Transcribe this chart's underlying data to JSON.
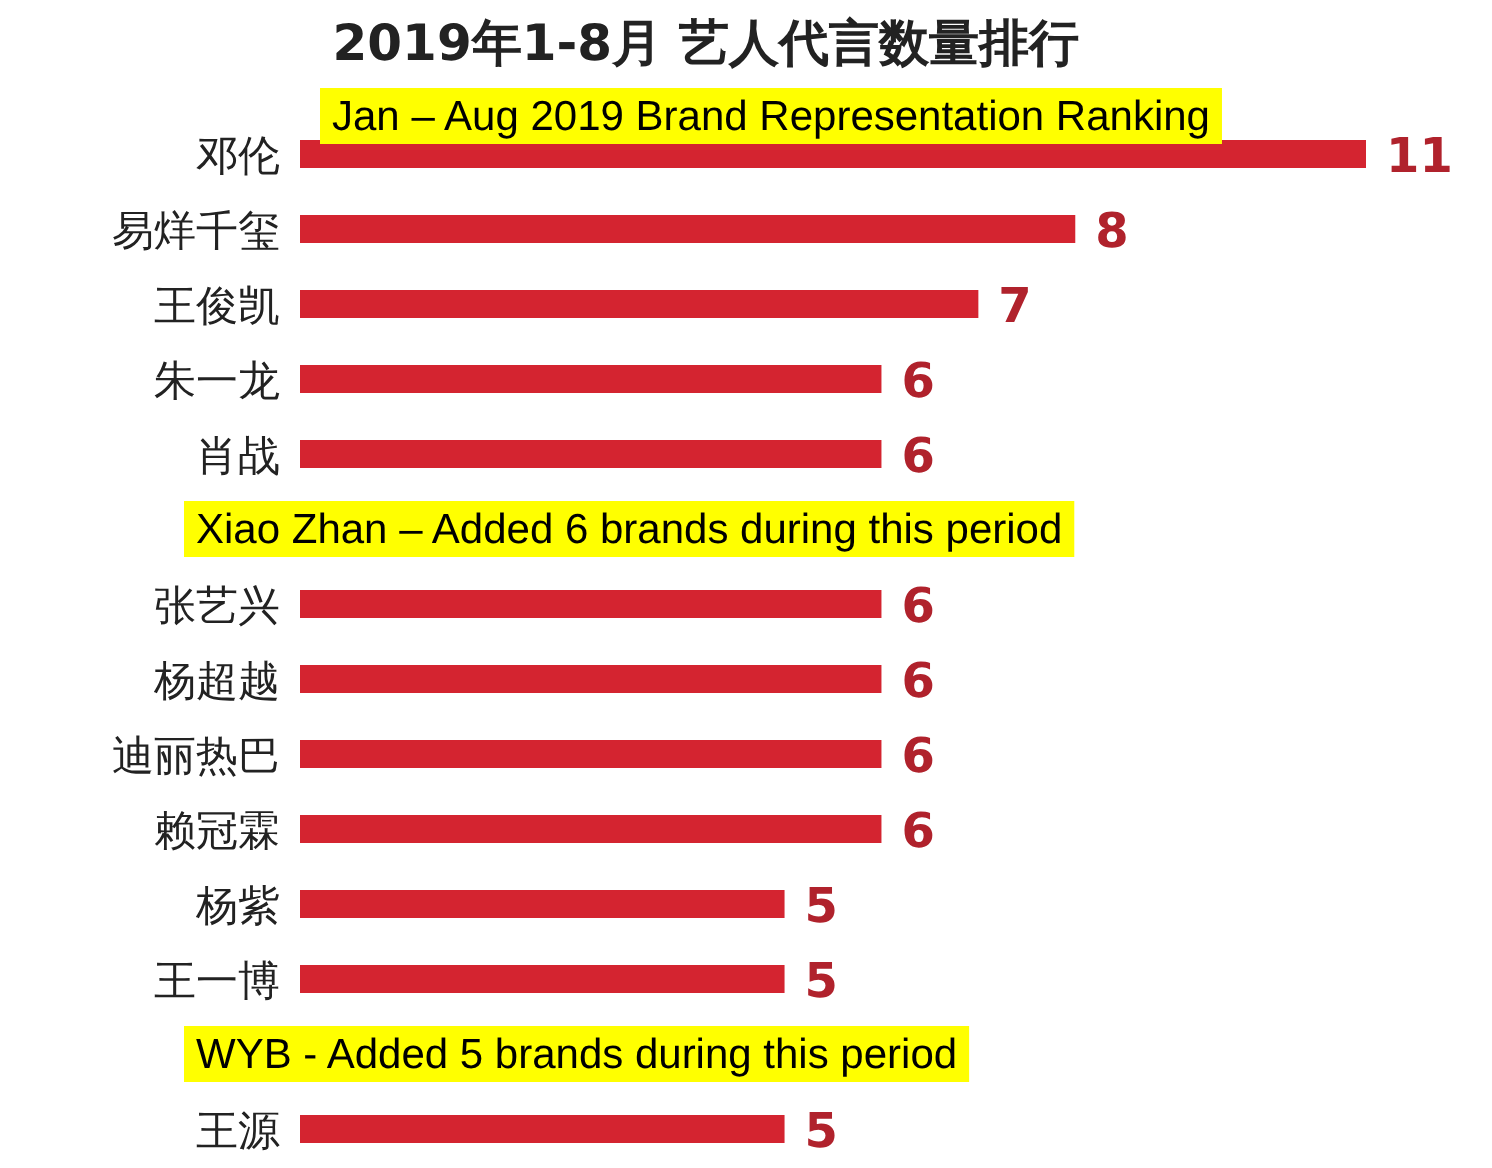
{
  "chart_data": {
    "type": "bar",
    "orientation": "horizontal",
    "title": "2019年1-8月 艺人代言数量排行",
    "categories": [
      "邓伦",
      "易烊千玺",
      "王俊凯",
      "朱一龙",
      "肖战",
      null,
      "张艺兴",
      "杨超越",
      "迪丽热巴",
      "赖冠霖",
      "杨紫",
      "王一博",
      null,
      "王源"
    ],
    "values": [
      11,
      8,
      7,
      6,
      6,
      null,
      6,
      6,
      6,
      6,
      5,
      5,
      null,
      5
    ],
    "color": "#d42430",
    "data_labels": true,
    "annotations": [
      "Jan – Aug 2019 Brand Representation Ranking",
      "Xiao Zhan – Added 6 brands during this period",
      "WYB - Added 5 brands during this period"
    ]
  }
}
